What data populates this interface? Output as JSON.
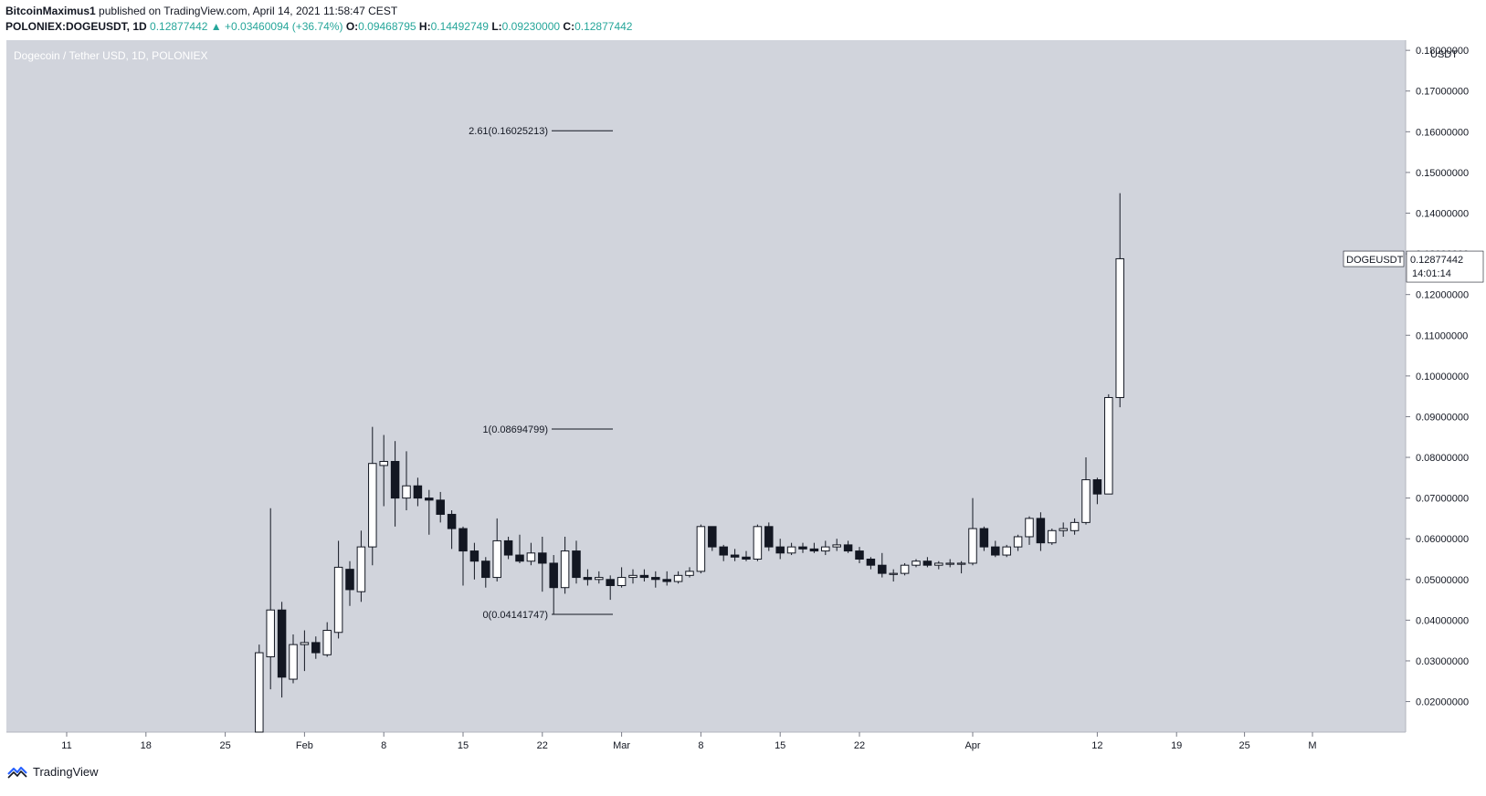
{
  "header": {
    "publisher": "BitcoinMaximus1",
    "published_text": "published on TradingView.com, April 14, 2021 11:58:47 CEST",
    "symbol": "POLONIEX:DOGEUSDT, 1D",
    "last": "0.12877442",
    "change": "+0.03460094 (+36.74%)",
    "o_label": "O:",
    "o": "0.09468795",
    "h_label": "H:",
    "h": "0.14492749",
    "l_label": "L:",
    "l": "0.09230000",
    "c_label": "C:",
    "c": "0.12877442"
  },
  "chart_title": "Dogecoin / Tether USD, 1D, POLONIEX",
  "price_tag": {
    "symbol": "DOGEUSDT",
    "value": "0.12877442",
    "countdown": "14:01:14"
  },
  "brand": {
    "name": "TradingView"
  },
  "colors": {
    "plot_bg": "#d1d4dc",
    "up_fill": "#ffffff",
    "down_fill": "#131722",
    "line": "#131722"
  },
  "chart_data": {
    "type": "candlestick",
    "title": "Dogecoin / Tether USD, 1D, POLONIEX",
    "y_axis_unit": "USDT",
    "ylim": [
      0.0125,
      0.1825
    ],
    "y_ticks": [
      0.02,
      0.03,
      0.04,
      0.05,
      0.06,
      0.07,
      0.08,
      0.09,
      0.1,
      0.11,
      0.12,
      0.13,
      0.14,
      0.15,
      0.16,
      0.17,
      0.18
    ],
    "y_tick_labels": [
      "0.02000000",
      "0.03000000",
      "0.04000000",
      "0.05000000",
      "0.06000000",
      "0.07000000",
      "0.08000000",
      "0.09000000",
      "0.10000000",
      "0.11000000",
      "0.12000000",
      "0.13000000",
      "0.14000000",
      "0.15000000",
      "0.16000000",
      "0.17000000",
      "0.18000000"
    ],
    "x_ticks": [
      {
        "day": -20,
        "label": "11"
      },
      {
        "day": -13,
        "label": "18"
      },
      {
        "day": -6,
        "label": "25"
      },
      {
        "day": 1,
        "label": "Feb"
      },
      {
        "day": 8,
        "label": "8"
      },
      {
        "day": 15,
        "label": "15"
      },
      {
        "day": 22,
        "label": "22"
      },
      {
        "day": 29,
        "label": "Mar"
      },
      {
        "day": 36,
        "label": "8"
      },
      {
        "day": 43,
        "label": "15"
      },
      {
        "day": 50,
        "label": "22"
      },
      {
        "day": 60,
        "label": "Apr"
      },
      {
        "day": 71,
        "label": "12"
      },
      {
        "day": 78,
        "label": "19"
      },
      {
        "day": 84,
        "label": "25"
      },
      {
        "day": 90,
        "label": "M"
      }
    ],
    "candles": [
      {
        "d": -3,
        "o": 0.0085,
        "h": 0.034,
        "l": 0.0085,
        "c": 0.032
      },
      {
        "d": -2,
        "o": 0.031,
        "h": 0.0675,
        "l": 0.023,
        "c": 0.0425
      },
      {
        "d": -1,
        "o": 0.0425,
        "h": 0.0445,
        "l": 0.021,
        "c": 0.026
      },
      {
        "d": 0,
        "o": 0.0255,
        "h": 0.0365,
        "l": 0.0245,
        "c": 0.034
      },
      {
        "d": 1,
        "o": 0.034,
        "h": 0.0375,
        "l": 0.0275,
        "c": 0.0345
      },
      {
        "d": 2,
        "o": 0.0345,
        "h": 0.036,
        "l": 0.0305,
        "c": 0.032
      },
      {
        "d": 3,
        "o": 0.0315,
        "h": 0.0395,
        "l": 0.031,
        "c": 0.0375
      },
      {
        "d": 4,
        "o": 0.037,
        "h": 0.0595,
        "l": 0.0355,
        "c": 0.053
      },
      {
        "d": 5,
        "o": 0.0525,
        "h": 0.0545,
        "l": 0.0435,
        "c": 0.0475
      },
      {
        "d": 6,
        "o": 0.047,
        "h": 0.062,
        "l": 0.0445,
        "c": 0.058
      },
      {
        "d": 7,
        "o": 0.058,
        "h": 0.0875,
        "l": 0.0535,
        "c": 0.0785
      },
      {
        "d": 8,
        "o": 0.078,
        "h": 0.0855,
        "l": 0.068,
        "c": 0.079
      },
      {
        "d": 9,
        "o": 0.079,
        "h": 0.084,
        "l": 0.063,
        "c": 0.07
      },
      {
        "d": 10,
        "o": 0.07,
        "h": 0.0815,
        "l": 0.067,
        "c": 0.073
      },
      {
        "d": 11,
        "o": 0.073,
        "h": 0.075,
        "l": 0.068,
        "c": 0.07
      },
      {
        "d": 12,
        "o": 0.07,
        "h": 0.072,
        "l": 0.061,
        "c": 0.0695
      },
      {
        "d": 13,
        "o": 0.0695,
        "h": 0.0715,
        "l": 0.064,
        "c": 0.066
      },
      {
        "d": 14,
        "o": 0.066,
        "h": 0.067,
        "l": 0.0575,
        "c": 0.0625
      },
      {
        "d": 15,
        "o": 0.0625,
        "h": 0.063,
        "l": 0.0485,
        "c": 0.057
      },
      {
        "d": 16,
        "o": 0.057,
        "h": 0.059,
        "l": 0.05,
        "c": 0.0545
      },
      {
        "d": 17,
        "o": 0.0545,
        "h": 0.0555,
        "l": 0.048,
        "c": 0.0505
      },
      {
        "d": 18,
        "o": 0.0505,
        "h": 0.065,
        "l": 0.0495,
        "c": 0.0595
      },
      {
        "d": 19,
        "o": 0.0595,
        "h": 0.0605,
        "l": 0.055,
        "c": 0.056
      },
      {
        "d": 20,
        "o": 0.056,
        "h": 0.061,
        "l": 0.054,
        "c": 0.0545
      },
      {
        "d": 21,
        "o": 0.0545,
        "h": 0.059,
        "l": 0.0535,
        "c": 0.0565
      },
      {
        "d": 22,
        "o": 0.0565,
        "h": 0.0605,
        "l": 0.047,
        "c": 0.054
      },
      {
        "d": 23,
        "o": 0.054,
        "h": 0.056,
        "l": 0.0415,
        "c": 0.048
      },
      {
        "d": 24,
        "o": 0.048,
        "h": 0.0605,
        "l": 0.0465,
        "c": 0.057
      },
      {
        "d": 25,
        "o": 0.057,
        "h": 0.0595,
        "l": 0.049,
        "c": 0.0505
      },
      {
        "d": 26,
        "o": 0.0505,
        "h": 0.0525,
        "l": 0.0485,
        "c": 0.05
      },
      {
        "d": 27,
        "o": 0.05,
        "h": 0.052,
        "l": 0.049,
        "c": 0.0505
      },
      {
        "d": 28,
        "o": 0.05,
        "h": 0.051,
        "l": 0.045,
        "c": 0.0485
      },
      {
        "d": 29,
        "o": 0.0485,
        "h": 0.053,
        "l": 0.048,
        "c": 0.0505
      },
      {
        "d": 30,
        "o": 0.0505,
        "h": 0.0525,
        "l": 0.049,
        "c": 0.051
      },
      {
        "d": 31,
        "o": 0.051,
        "h": 0.0525,
        "l": 0.0495,
        "c": 0.0505
      },
      {
        "d": 32,
        "o": 0.0505,
        "h": 0.052,
        "l": 0.048,
        "c": 0.05
      },
      {
        "d": 33,
        "o": 0.05,
        "h": 0.052,
        "l": 0.0485,
        "c": 0.0495
      },
      {
        "d": 34,
        "o": 0.0495,
        "h": 0.052,
        "l": 0.049,
        "c": 0.051
      },
      {
        "d": 35,
        "o": 0.051,
        "h": 0.053,
        "l": 0.0505,
        "c": 0.052
      },
      {
        "d": 36,
        "o": 0.052,
        "h": 0.0635,
        "l": 0.0515,
        "c": 0.063
      },
      {
        "d": 37,
        "o": 0.063,
        "h": 0.063,
        "l": 0.057,
        "c": 0.058
      },
      {
        "d": 38,
        "o": 0.058,
        "h": 0.0585,
        "l": 0.0545,
        "c": 0.056
      },
      {
        "d": 39,
        "o": 0.056,
        "h": 0.0575,
        "l": 0.0545,
        "c": 0.0555
      },
      {
        "d": 40,
        "o": 0.0555,
        "h": 0.057,
        "l": 0.0545,
        "c": 0.055
      },
      {
        "d": 41,
        "o": 0.055,
        "h": 0.0635,
        "l": 0.0545,
        "c": 0.063
      },
      {
        "d": 42,
        "o": 0.063,
        "h": 0.064,
        "l": 0.057,
        "c": 0.058
      },
      {
        "d": 43,
        "o": 0.058,
        "h": 0.06,
        "l": 0.055,
        "c": 0.0565
      },
      {
        "d": 44,
        "o": 0.0565,
        "h": 0.059,
        "l": 0.056,
        "c": 0.058
      },
      {
        "d": 45,
        "o": 0.058,
        "h": 0.059,
        "l": 0.0565,
        "c": 0.0575
      },
      {
        "d": 46,
        "o": 0.0575,
        "h": 0.059,
        "l": 0.0565,
        "c": 0.057
      },
      {
        "d": 47,
        "o": 0.057,
        "h": 0.0595,
        "l": 0.056,
        "c": 0.058
      },
      {
        "d": 48,
        "o": 0.058,
        "h": 0.06,
        "l": 0.057,
        "c": 0.0585
      },
      {
        "d": 49,
        "o": 0.0585,
        "h": 0.0595,
        "l": 0.0565,
        "c": 0.057
      },
      {
        "d": 50,
        "o": 0.057,
        "h": 0.058,
        "l": 0.054,
        "c": 0.055
      },
      {
        "d": 51,
        "o": 0.055,
        "h": 0.0555,
        "l": 0.0525,
        "c": 0.0535
      },
      {
        "d": 52,
        "o": 0.0535,
        "h": 0.0565,
        "l": 0.0505,
        "c": 0.0515
      },
      {
        "d": 53,
        "o": 0.0515,
        "h": 0.0525,
        "l": 0.0495,
        "c": 0.0515
      },
      {
        "d": 54,
        "o": 0.0515,
        "h": 0.054,
        "l": 0.051,
        "c": 0.0535
      },
      {
        "d": 55,
        "o": 0.0535,
        "h": 0.055,
        "l": 0.053,
        "c": 0.0545
      },
      {
        "d": 56,
        "o": 0.0545,
        "h": 0.0555,
        "l": 0.053,
        "c": 0.0535
      },
      {
        "d": 57,
        "o": 0.0535,
        "h": 0.0545,
        "l": 0.0525,
        "c": 0.054
      },
      {
        "d": 58,
        "o": 0.054,
        "h": 0.055,
        "l": 0.053,
        "c": 0.054
      },
      {
        "d": 59,
        "o": 0.054,
        "h": 0.0545,
        "l": 0.0515,
        "c": 0.054
      },
      {
        "d": 60,
        "o": 0.054,
        "h": 0.07,
        "l": 0.0535,
        "c": 0.0625
      },
      {
        "d": 61,
        "o": 0.0625,
        "h": 0.063,
        "l": 0.057,
        "c": 0.058
      },
      {
        "d": 62,
        "o": 0.058,
        "h": 0.0595,
        "l": 0.0555,
        "c": 0.056
      },
      {
        "d": 63,
        "o": 0.056,
        "h": 0.0585,
        "l": 0.0555,
        "c": 0.058
      },
      {
        "d": 64,
        "o": 0.058,
        "h": 0.061,
        "l": 0.057,
        "c": 0.0605
      },
      {
        "d": 65,
        "o": 0.0605,
        "h": 0.0655,
        "l": 0.0585,
        "c": 0.065
      },
      {
        "d": 66,
        "o": 0.065,
        "h": 0.0665,
        "l": 0.057,
        "c": 0.059
      },
      {
        "d": 67,
        "o": 0.059,
        "h": 0.0625,
        "l": 0.0585,
        "c": 0.062
      },
      {
        "d": 68,
        "o": 0.062,
        "h": 0.064,
        "l": 0.0605,
        "c": 0.0625
      },
      {
        "d": 69,
        "o": 0.062,
        "h": 0.065,
        "l": 0.061,
        "c": 0.064
      },
      {
        "d": 70,
        "o": 0.064,
        "h": 0.08,
        "l": 0.0635,
        "c": 0.0745
      },
      {
        "d": 71,
        "o": 0.0745,
        "h": 0.075,
        "l": 0.0685,
        "c": 0.071
      },
      {
        "d": 72,
        "o": 0.071,
        "h": 0.0955,
        "l": 0.071,
        "c": 0.0947
      },
      {
        "d": 73,
        "o": 0.0947,
        "h": 0.1449,
        "l": 0.0923,
        "c": 0.1288
      }
    ],
    "fib_levels": [
      {
        "ratio": "2.61",
        "label": "2.61(0.16025213)",
        "value": 0.16025213
      },
      {
        "ratio": "1",
        "label": "1(0.08694799)",
        "value": 0.08694799
      },
      {
        "ratio": "0",
        "label": "0(0.04141747)",
        "value": 0.04141747
      }
    ],
    "last_price": 0.12877442
  }
}
